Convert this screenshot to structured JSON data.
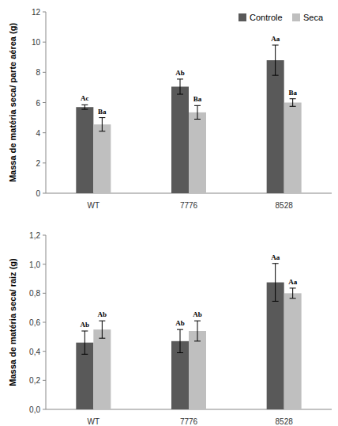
{
  "chart_data": [
    {
      "type": "bar",
      "categories": [
        "WT",
        "7776",
        "8528"
      ],
      "y_label": "Massa de matéria seca/ parte aérea (g)",
      "series": [
        {
          "name": "Controle",
          "color": "#595959",
          "values": [
            5.7,
            7.05,
            8.8
          ],
          "errors": [
            0.15,
            0.5,
            1.0
          ],
          "annotations": [
            "Ac",
            "Ab",
            "Aa"
          ]
        },
        {
          "name": "Seca",
          "color": "#bfbfbf",
          "values": [
            4.55,
            5.35,
            6.0
          ],
          "errors": [
            0.45,
            0.45,
            0.25
          ],
          "annotations": [
            "Ba",
            "Ba",
            "Ba"
          ]
        }
      ],
      "ylim": [
        0,
        12
      ],
      "yticks": [
        0,
        2,
        4,
        6,
        8,
        10,
        12
      ],
      "grid": false,
      "legend": "top-right"
    },
    {
      "type": "bar",
      "categories": [
        "WT",
        "7776",
        "8528"
      ],
      "y_label": "Massa de matéria seca/ raiz (g)",
      "series": [
        {
          "name": "Controle",
          "color": "#595959",
          "values": [
            0.46,
            0.47,
            0.875
          ],
          "errors": [
            0.08,
            0.08,
            0.13
          ],
          "annotations": [
            "Ab",
            "Ab",
            "Aa"
          ]
        },
        {
          "name": "Seca",
          "color": "#bfbfbf",
          "values": [
            0.55,
            0.54,
            0.8
          ],
          "errors": [
            0.06,
            0.07,
            0.035
          ],
          "annotations": [
            "Ab",
            "Ab",
            "Aa"
          ]
        }
      ],
      "ylim": [
        0,
        1.2
      ],
      "yticks": [
        {
          "value": 0,
          "label": "0,0"
        },
        {
          "value": 0.2,
          "label": "0,2"
        },
        {
          "value": 0.4,
          "label": "0,4"
        },
        {
          "value": 0.6,
          "label": "0,6"
        },
        {
          "value": 0.8,
          "label": "0,8"
        },
        {
          "value": 1.0,
          "label": "1,0"
        },
        {
          "value": 1.2,
          "label": "1,2"
        }
      ],
      "grid": false
    }
  ]
}
